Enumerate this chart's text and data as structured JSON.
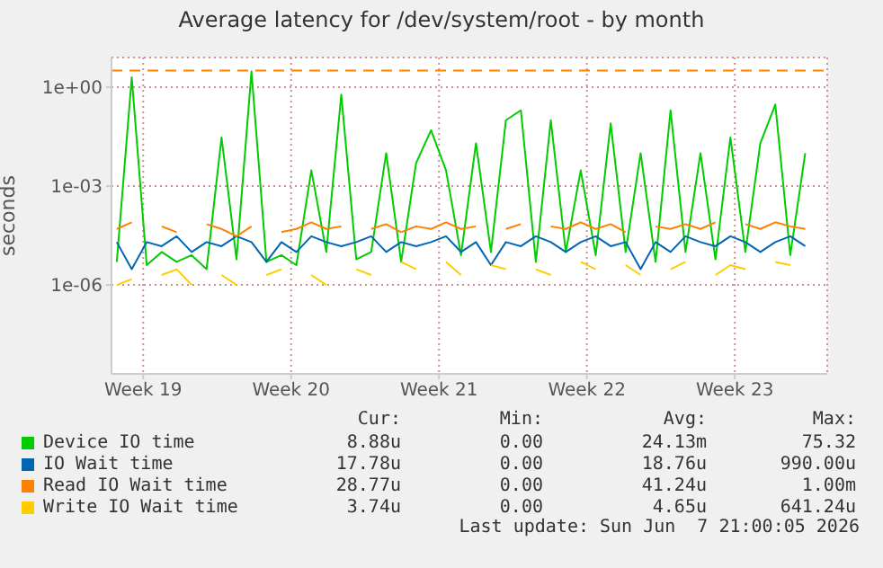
{
  "chart_data": {
    "type": "line",
    "title": "Average latency for /dev/system/root - by month",
    "ylabel": "seconds",
    "log": true,
    "grid": true,
    "legend": "bottom",
    "marker": "none",
    "line_style": "solid",
    "x": [
      "2026-05-05T06:00",
      "2026-05-05T23:00",
      "2026-05-06T16:00",
      "2026-05-07T09:00",
      "2026-05-08T02:00",
      "2026-05-08T19:00",
      "2026-05-09T12:00",
      "2026-05-10T05:00",
      "2026-05-10T22:00",
      "2026-05-11T15:00",
      "2026-05-12T08:00",
      "2026-05-13T01:00",
      "2026-05-13T18:00",
      "2026-05-14T11:00",
      "2026-05-15T04:00",
      "2026-05-15T21:00",
      "2026-05-16T14:00",
      "2026-05-17T07:00",
      "2026-05-18T00:00",
      "2026-05-18T17:00",
      "2026-05-19T10:00",
      "2026-05-20T03:00",
      "2026-05-20T20:00",
      "2026-05-21T13:00",
      "2026-05-22T06:00",
      "2026-05-22T23:00",
      "2026-05-23T16:00",
      "2026-05-24T09:00",
      "2026-05-25T02:00",
      "2026-05-25T19:00",
      "2026-05-26T12:00",
      "2026-05-27T05:00",
      "2026-05-27T22:00",
      "2026-05-28T15:00",
      "2026-05-29T08:00",
      "2026-05-30T01:00",
      "2026-05-30T18:00",
      "2026-05-31T11:00",
      "2026-06-01T04:00",
      "2026-06-01T21:00",
      "2026-06-02T14:00",
      "2026-06-03T07:00",
      "2026-06-04T00:00",
      "2026-06-04T17:00",
      "2026-06-05T10:00",
      "2026-06-06T03:00",
      "2026-06-06T20:00"
    ],
    "xlim": [
      "2026-05-05T00:00",
      "2026-06-07T21:00"
    ],
    "xticks": [
      {
        "value": "2026-05-06T12:00",
        "label": "Week 19"
      },
      {
        "value": "2026-05-13T12:00",
        "label": "Week 20"
      },
      {
        "value": "2026-05-20T12:00",
        "label": "Week 21"
      },
      {
        "value": "2026-05-27T12:00",
        "label": "Week 22"
      },
      {
        "value": "2026-06-03T12:00",
        "label": "Week 23"
      }
    ],
    "ylim": [
      2e-09,
      8
    ],
    "yticks": [
      {
        "value": 1e-06,
        "label": "1e-06"
      },
      {
        "value": 0.001,
        "label": "1e-03"
      },
      {
        "value": 1,
        "label": "1e+00"
      }
    ],
    "ref_lines": [
      {
        "axis": "y",
        "value": 3.2,
        "color": "#ff8000",
        "line_style": "dashed"
      }
    ],
    "series": [
      {
        "name": "Device IO time",
        "color": "#00cc00",
        "values": [
          5e-06,
          2,
          4e-06,
          1e-05,
          5e-06,
          8e-06,
          3e-06,
          0.03,
          6e-06,
          3,
          5e-06,
          8e-06,
          4e-06,
          0.003,
          1e-05,
          0.6,
          6e-06,
          1e-05,
          0.01,
          5e-06,
          0.005,
          0.05,
          0.003,
          8e-06,
          0.02,
          1e-05,
          0.1,
          0.2,
          5e-06,
          0.1,
          1e-05,
          0.003,
          8e-06,
          0.08,
          1e-05,
          0.01,
          5e-06,
          0.2,
          1e-05,
          0.01,
          6e-06,
          0.03,
          1e-05,
          0.02,
          0.3,
          8e-06,
          0.01
        ]
      },
      {
        "name": "IO Wait time",
        "color": "#0066b3",
        "values": [
          2e-05,
          3e-06,
          2e-05,
          1.5e-05,
          3e-05,
          1e-05,
          2e-05,
          1.5e-05,
          3e-05,
          2e-05,
          5e-06,
          2e-05,
          1e-05,
          3e-05,
          2e-05,
          1.5e-05,
          2e-05,
          3e-05,
          1e-05,
          2e-05,
          1.5e-05,
          2e-05,
          3e-05,
          1e-05,
          2e-05,
          4e-06,
          2e-05,
          1.5e-05,
          3e-05,
          2e-05,
          1e-05,
          2e-05,
          3e-05,
          1.5e-05,
          2e-05,
          3e-06,
          2e-05,
          1e-05,
          3e-05,
          2e-05,
          1.5e-05,
          3e-05,
          2e-05,
          1e-05,
          2e-05,
          3e-05,
          1.5e-05
        ]
      },
      {
        "name": "Read IO Wait time",
        "color": "#ff8000",
        "values": [
          5e-05,
          8e-05,
          null,
          6e-05,
          4e-05,
          null,
          7e-05,
          5e-05,
          3e-05,
          6e-05,
          null,
          4e-05,
          5e-05,
          8e-05,
          5e-05,
          6e-05,
          null,
          5e-05,
          7e-05,
          4e-05,
          6e-05,
          5e-05,
          8e-05,
          5e-05,
          6e-05,
          null,
          5e-05,
          7e-05,
          null,
          6e-05,
          5e-05,
          8e-05,
          5e-05,
          7e-05,
          4e-05,
          null,
          6e-05,
          5e-05,
          7e-05,
          5e-05,
          8e-05,
          null,
          7e-05,
          5e-05,
          8e-05,
          6e-05,
          5e-05
        ]
      },
      {
        "name": "Write IO Wait time",
        "color": "#ffcc00",
        "values": [
          1e-06,
          1.5e-06,
          null,
          2e-06,
          3e-06,
          1e-06,
          null,
          2e-06,
          1e-06,
          null,
          2e-06,
          3e-06,
          null,
          2e-06,
          1e-06,
          null,
          3e-06,
          2e-06,
          null,
          5e-06,
          3e-06,
          null,
          5e-06,
          2e-06,
          null,
          4e-06,
          3e-06,
          null,
          3e-06,
          2e-06,
          null,
          5e-06,
          3e-06,
          null,
          4e-06,
          2e-06,
          null,
          3e-06,
          5e-06,
          null,
          2e-06,
          4e-06,
          3e-06,
          null,
          5e-06,
          4e-06,
          null
        ]
      }
    ],
    "annotations": [
      "Cur:",
      "Min:",
      "Avg:",
      "Max:",
      "8.88u",
      "0.00",
      "24.13m",
      "75.32",
      "17.78u",
      "0.00",
      "18.76u",
      "990.00u",
      "28.77u",
      "0.00",
      "41.24u",
      "1.00m",
      "3.74u",
      "0.00",
      "4.65u",
      "641.24u",
      "Last update: Sun Jun  7 21:00:05 2026"
    ]
  }
}
